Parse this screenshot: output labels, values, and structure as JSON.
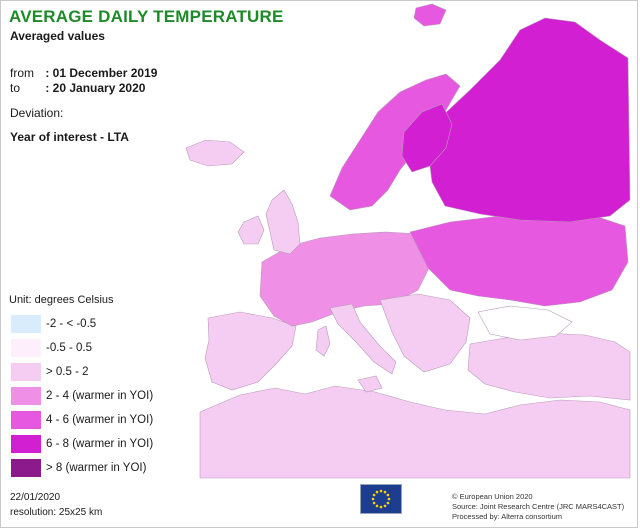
{
  "header": {
    "title": "AVERAGE DAILY TEMPERATURE",
    "subtitle": "Averaged values"
  },
  "period": {
    "from_label": "from",
    "from_value": ": 01 December 2019",
    "to_label": "to",
    "to_value": ": 20 January 2020"
  },
  "deviation": {
    "label": "Deviation:",
    "value": "Year of interest - LTA"
  },
  "legend": {
    "unit": "Unit: degrees Celsius",
    "classes": [
      {
        "label": "-2 - < -0.5",
        "color": "#d8ecfb"
      },
      {
        "label": "-0.5 - 0.5",
        "color": "#fdf0fc"
      },
      {
        "label": "> 0.5 - 2",
        "color": "#f6cdf2"
      },
      {
        "label": "2 - 4 (warmer in YOI)",
        "color": "#ef90e6"
      },
      {
        "label": "4 - 6 (warmer in YOI)",
        "color": "#e558df"
      },
      {
        "label": "6 - 8 (warmer in YOI)",
        "color": "#d21fd1"
      },
      {
        "label": "> 8 (warmer in YOI)",
        "color": "#8c1a8c"
      }
    ]
  },
  "colors": {
    "sea": "#ffffff",
    "no_data": "#ffffff",
    "border": "#a88aa8",
    "title": "#1f8a2a",
    "eu_flag": "#1d3d8f",
    "eu_stars": "#ffd200"
  },
  "footer": {
    "date": "22/01/2020",
    "resolution": "resolution: 25x25 km",
    "credit_1": "© European Union 2020",
    "credit_2": "Source: Joint Research Centre (JRC MARS4CAST)",
    "credit_3": "Processed by: Alterra consortium"
  }
}
